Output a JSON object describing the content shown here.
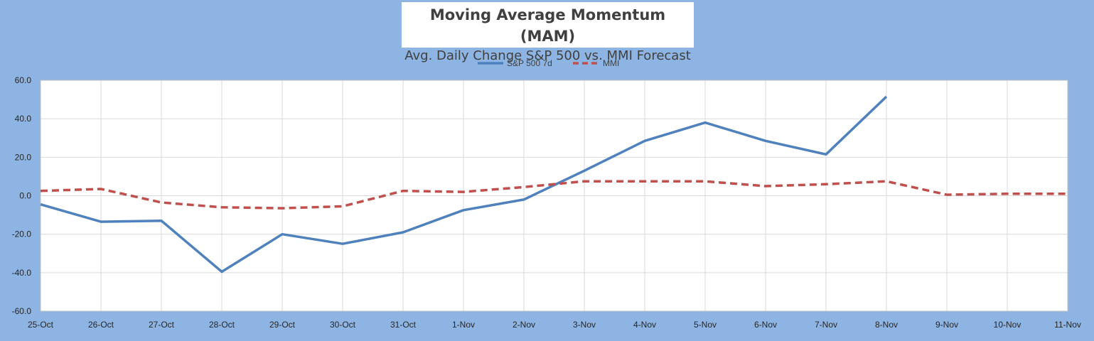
{
  "chart_data": {
    "type": "line",
    "title": "Moving Average Momentum (MAM)",
    "subtitle": "Avg. Daily Change S&P 500 vs. MMI Forecast",
    "categories": [
      "25-Oct",
      "26-Oct",
      "27-Oct",
      "28-Oct",
      "29-Oct",
      "30-Oct",
      "31-Oct",
      "1-Nov",
      "2-Nov",
      "3-Nov",
      "4-Nov",
      "5-Nov",
      "6-Nov",
      "7-Nov",
      "8-Nov",
      "9-Nov",
      "10-Nov",
      "11-Nov"
    ],
    "ylim": [
      -60,
      60
    ],
    "yticks": [
      "60.0",
      "40.0",
      "20.0",
      "0.0",
      "-20.0",
      "-40.0",
      "-60.0"
    ],
    "ytick_values": [
      60,
      40,
      20,
      0,
      -20,
      -40,
      -60
    ],
    "grid": true,
    "legend_position": "top",
    "series": [
      {
        "name": "S&P 500 7d",
        "color": "#4f81bd",
        "style": "solid",
        "values": [
          -4.5,
          -13.5,
          -13,
          -39.5,
          -20,
          -25,
          -19,
          -7.5,
          -2,
          13,
          28.5,
          38,
          28.5,
          21.5,
          51.5,
          null,
          null,
          null
        ]
      },
      {
        "name": "MMI",
        "color": "#c0504d",
        "style": "dashed",
        "values": [
          2.5,
          3.5,
          -3.5,
          -6,
          -6.5,
          -5.5,
          2.5,
          2,
          4.5,
          7.5,
          7.5,
          7.5,
          5,
          6,
          7.5,
          0.5,
          1,
          1
        ]
      }
    ]
  }
}
